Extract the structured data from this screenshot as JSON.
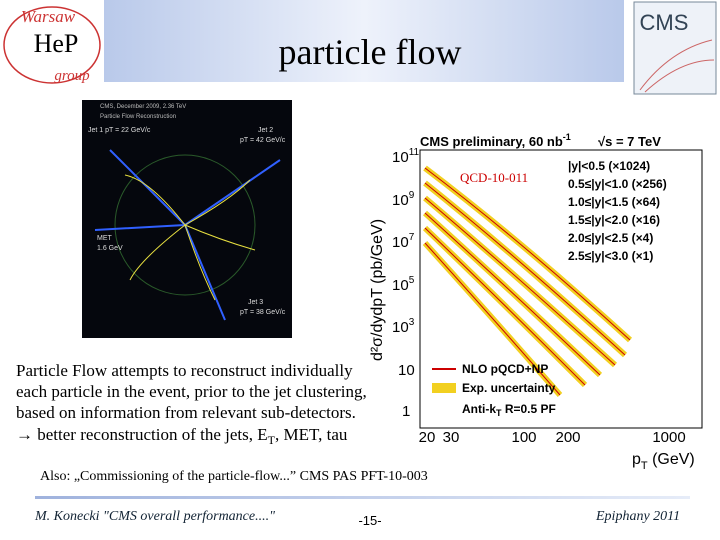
{
  "header": {
    "title": "particle flow",
    "logo_left": {
      "top": "Warsaw",
      "middle": "HeP",
      "bottom": "group"
    },
    "logo_right": "CMS"
  },
  "event_display": {
    "caption": "CMS, December 2009, 2.36 TeV",
    "subtitle": "Particle Flow Reconstruction",
    "labels": [
      "Jet 1  pT = 22 GeV/c",
      "Jet 2",
      "pT = 42 GeV/c",
      "MET",
      "1.6 GeV",
      "Jet 3",
      "pT = 38 GeV/c"
    ]
  },
  "plot": {
    "title": "CMS preliminary, 60 nb",
    "title_exp": "-1",
    "energy": "√s = 7 TeV",
    "reference": "QCD-10-011",
    "y_label": "d²σ/dydpT (pb/GeV)",
    "x_label": "p",
    "x_label_sub": "T",
    "x_label_unit": " (GeV)",
    "series": [
      "|y|<0.5 (×1024)",
      "0.5≤|y|<1.0 (×256)",
      "1.0≤|y|<1.5 (×64)",
      "1.5≤|y|<2.0 (×16)",
      "2.0≤|y|<2.5 (×4)",
      "2.5≤|y|<3.0 (×1)"
    ],
    "legend": {
      "theory": "NLO pQCD+NP",
      "uncertainty": "Exp. uncertainty",
      "data": "Anti-k",
      "data_sub": "T",
      "data_rest": " R=0.5 PF"
    },
    "yticks": [
      {
        "base": "10",
        "exp": "11"
      },
      {
        "base": "10",
        "exp": "9"
      },
      {
        "base": "10",
        "exp": "7"
      },
      {
        "base": "10",
        "exp": "5"
      },
      {
        "base": "10",
        "exp": "3"
      },
      {
        "base": "10"
      },
      {
        "base": "1"
      }
    ],
    "xticks": [
      "20",
      "30",
      "100",
      "200",
      "1000"
    ]
  },
  "body": {
    "lines": [
      "Particle Flow attempts to reconstruct individually",
      "each particle in the event, prior to the jet clustering,",
      "based on information from relevant sub-detectors."
    ],
    "last": {
      "before": "→ better reconstruction of the jets, E",
      "sub": "T",
      "after": ", MET, tau"
    }
  },
  "note": "Also: „Commissioning of the particle-flow...” CMS PAS PFT-10-003",
  "footer": {
    "author": "M. Konecki  \"CMS overall performance....\"",
    "page": "-15-",
    "event": "Epiphany 2011"
  }
}
